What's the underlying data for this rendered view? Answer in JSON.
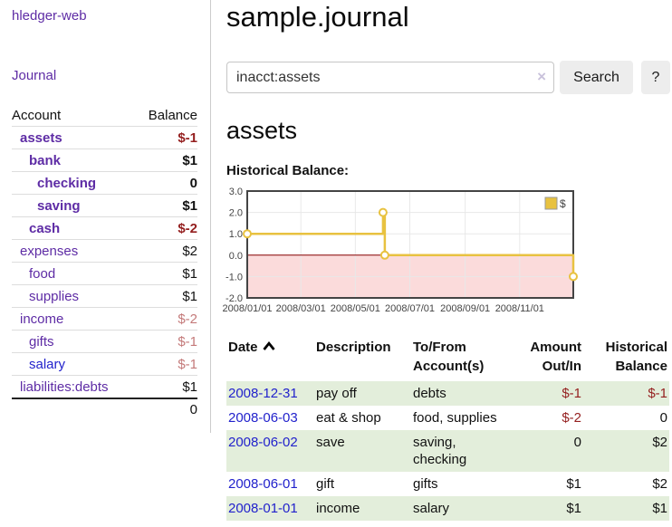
{
  "sidebar": {
    "brand": "hledger-web",
    "journal_link": "Journal",
    "account_header": "Account",
    "balance_header": "Balance",
    "accounts": [
      {
        "name": "assets",
        "balance": "$-1"
      },
      {
        "name": "bank",
        "balance": "$1"
      },
      {
        "name": "checking",
        "balance": "0"
      },
      {
        "name": "saving",
        "balance": "$1"
      },
      {
        "name": "cash",
        "balance": "$-2"
      },
      {
        "name": "expenses",
        "balance": "$2"
      },
      {
        "name": "food",
        "balance": "$1"
      },
      {
        "name": "supplies",
        "balance": "$1"
      },
      {
        "name": "income",
        "balance": "$-2"
      },
      {
        "name": "gifts",
        "balance": "$-1"
      },
      {
        "name": "salary",
        "balance": "$-1"
      },
      {
        "name": "liabilities:debts",
        "balance": "$1"
      }
    ],
    "total": "0"
  },
  "main": {
    "title": "sample.journal",
    "search": {
      "value": "inacct:assets",
      "clear_icon": "×",
      "search_button": "Search",
      "help_button": "?"
    },
    "account_heading": "assets",
    "chart_label": "Historical Balance:"
  },
  "chart_data": {
    "type": "line",
    "subtype": "step",
    "title": "Historical Balance",
    "ylim": [
      -2,
      3
    ],
    "yticks": [
      "3.0",
      "2.0",
      "1.0",
      "0.0",
      "-1.0",
      "-2.0"
    ],
    "ytick_values": [
      3,
      2,
      1,
      0,
      -1,
      -2
    ],
    "xrange": [
      "2008-01-01",
      "2008-12-31"
    ],
    "xticks": [
      {
        "date": "2008-01-01",
        "label": "2008/01/01"
      },
      {
        "date": "2008-03-01",
        "label": "2008/03/01"
      },
      {
        "date": "2008-05-01",
        "label": "2008/05/01"
      },
      {
        "date": "2008-07-01",
        "label": "2008/07/01"
      },
      {
        "date": "2008-09-01",
        "label": "2008/09/01"
      },
      {
        "date": "2008-11-01",
        "label": "2008/11/01"
      }
    ],
    "series": [
      {
        "name": "$",
        "color": "#E8C240",
        "points": [
          {
            "date": "2008-01-01",
            "value": 1
          },
          {
            "date": "2008-06-01",
            "value": 2
          },
          {
            "date": "2008-06-03",
            "value": 0
          },
          {
            "date": "2008-12-31",
            "value": -1
          }
        ]
      }
    ],
    "legend": {
      "label": "$",
      "position": "top-right"
    },
    "grid": true,
    "negative_region_color": "#FBDBDB",
    "zero_line_color": "#8B0000",
    "border_color": "#444444",
    "grid_color": "#E8E8E8"
  },
  "register": {
    "columns": {
      "date": "Date",
      "description": "Description",
      "accounts": "To/From Account(s)",
      "amount": "Amount Out/In",
      "balance": "Historical Balance"
    },
    "rows": [
      {
        "date": "2008-12-31",
        "description": "pay off",
        "accounts": "debts",
        "amount": "$-1",
        "balance": "$-1"
      },
      {
        "date": "2008-06-03",
        "description": "eat & shop",
        "accounts": "food, supplies",
        "amount": "$-2",
        "balance": "0"
      },
      {
        "date": "2008-06-02",
        "description": "save",
        "accounts": "saving, checking",
        "amount": "0",
        "balance": "$2"
      },
      {
        "date": "2008-06-01",
        "description": "gift",
        "accounts": "gifts",
        "amount": "$1",
        "balance": "$2"
      },
      {
        "date": "2008-01-01",
        "description": "income",
        "accounts": "salary",
        "amount": "$1",
        "balance": "$1"
      }
    ]
  }
}
